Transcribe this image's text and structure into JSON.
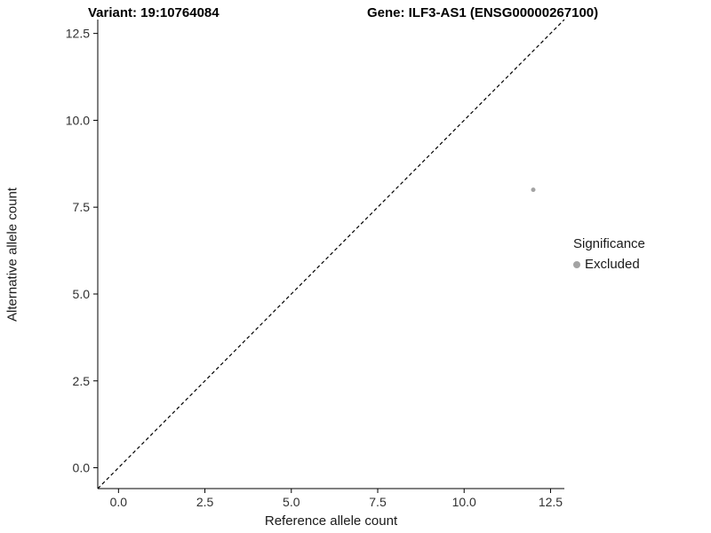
{
  "chart_data": {
    "type": "scatter",
    "title_left": "Variant: 19:10764084",
    "title_right": "Gene: ILF3-AS1 (ENSG00000267100)",
    "xlabel": "Reference allele count",
    "ylabel": "Alternative allele count",
    "xlim": [
      -0.6,
      12.9
    ],
    "ylim": [
      -0.6,
      12.9
    ],
    "xticks": [
      0.0,
      2.5,
      5.0,
      7.5,
      10.0,
      12.5
    ],
    "yticks": [
      0.0,
      2.5,
      5.0,
      7.5,
      10.0,
      12.5
    ],
    "grid": false,
    "identity_line": {
      "style": "dashed",
      "from": -0.6,
      "to": 12.9,
      "color": "#000000"
    },
    "series": [
      {
        "name": "Excluded",
        "color": "#a3a3a3",
        "points": [
          {
            "x": 12,
            "y": 8
          }
        ],
        "point_radius": 2.5
      }
    ],
    "legend": {
      "position": "right",
      "title": "Significance",
      "items": [
        {
          "label": "Excluded",
          "color": "#a3a3a3"
        }
      ]
    },
    "axis": {
      "color": "#000000",
      "tick_label_color": "#303030",
      "tick_format_decimals": 1
    }
  }
}
